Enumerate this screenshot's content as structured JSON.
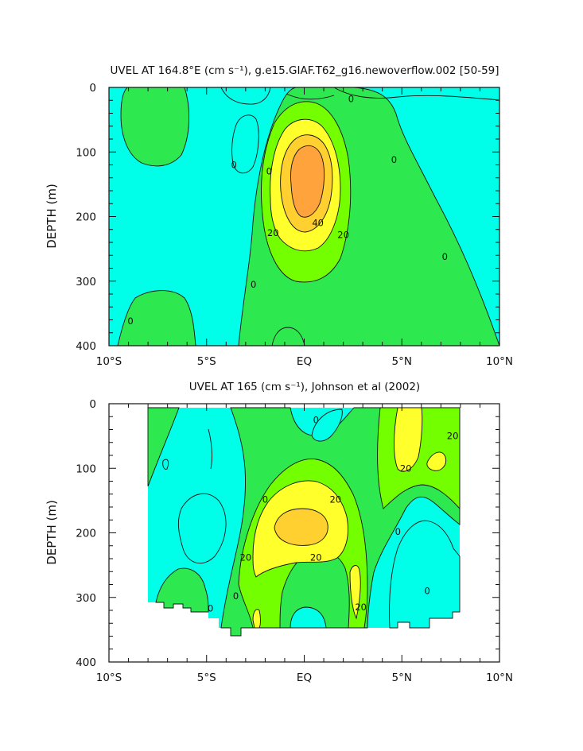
{
  "colors": {
    "neg": "#00ffe9",
    "c0_10": "#2ee84f",
    "c10_20": "#73ff00",
    "c20_30": "#ffff2c",
    "c30_40": "#ffd02f",
    "c40_50": "#ffa33c",
    "line": "#111111",
    "blank": "#ffffff"
  },
  "chart_data": [
    {
      "type": "contour",
      "title": "UVEL AT 164.8°E (cm s⁻¹), g.e15.GIAF.T62_g16.newoverflow.002 [50-59]",
      "xlabel": "",
      "ylabel": "DEPTH (m)",
      "x_tick_labels": [
        "10°S",
        "5°S",
        "EQ",
        "5°N",
        "10°N"
      ],
      "x_ticks": [
        -10,
        -5,
        0,
        5,
        10
      ],
      "y_tick_labels": [
        "0",
        "100",
        "200",
        "300",
        "400"
      ],
      "y_ticks": [
        0,
        100,
        200,
        300,
        400
      ],
      "xlim": [
        -10,
        10
      ],
      "ylim": [
        0,
        400
      ],
      "y_inverted": true,
      "contour_interval": 10,
      "contour_levels": [
        0,
        10,
        20,
        30,
        40
      ],
      "core": {
        "lat": 0.0,
        "depth": 180,
        "max_value": 45
      },
      "contour_labels": [
        {
          "text": "0",
          "lat": -3.6,
          "depth": 120
        },
        {
          "text": "0",
          "lat": 2.4,
          "depth": 18
        },
        {
          "text": "0",
          "lat": 4.6,
          "depth": 112
        },
        {
          "text": "0",
          "lat": 7.2,
          "depth": 262
        },
        {
          "text": "0",
          "lat": -2.6,
          "depth": 305
        },
        {
          "text": "0",
          "lat": -8.9,
          "depth": 362
        },
        {
          "text": "20",
          "lat": -1.6,
          "depth": 225
        },
        {
          "text": "40",
          "lat": 0.7,
          "depth": 210
        },
        {
          "text": "20",
          "lat": 2.0,
          "depth": 228
        },
        {
          "text": "0",
          "lat": -1.8,
          "depth": 130
        }
      ]
    },
    {
      "type": "contour",
      "title": "UVEL AT 165 (cm s⁻¹), Johnson et al (2002)",
      "xlabel": "",
      "ylabel": "DEPTH (m)",
      "x_tick_labels": [
        "10°S",
        "5°S",
        "EQ",
        "5°N",
        "10°N"
      ],
      "x_ticks": [
        -10,
        -5,
        0,
        5,
        10
      ],
      "y_tick_labels": [
        "0",
        "100",
        "200",
        "300",
        "400"
      ],
      "y_ticks": [
        0,
        100,
        200,
        300,
        400
      ],
      "xlim": [
        -10,
        10
      ],
      "ylim": [
        0,
        400
      ],
      "y_inverted": true,
      "data_extent": {
        "lat": [
          -8,
          8
        ],
        "depth": [
          8,
          345
        ]
      },
      "contour_interval": 10,
      "contour_levels": [
        0,
        10,
        20,
        30
      ],
      "core": {
        "lat": 0.0,
        "depth": 185,
        "max_value": 35
      },
      "contour_labels": [
        {
          "text": "0",
          "lat": 0.6,
          "depth": 25
        },
        {
          "text": "20",
          "lat": 7.6,
          "depth": 50
        },
        {
          "text": "20",
          "lat": 5.2,
          "depth": 100
        },
        {
          "text": "0",
          "lat": -2.0,
          "depth": 148
        },
        {
          "text": "20",
          "lat": 1.6,
          "depth": 148
        },
        {
          "text": "20",
          "lat": -3.0,
          "depth": 238
        },
        {
          "text": "20",
          "lat": 0.6,
          "depth": 238
        },
        {
          "text": "0",
          "lat": 4.8,
          "depth": 198
        },
        {
          "text": "0",
          "lat": 6.3,
          "depth": 290
        },
        {
          "text": "0",
          "lat": -3.5,
          "depth": 298
        },
        {
          "text": "20",
          "lat": 2.9,
          "depth": 315
        },
        {
          "text": "0",
          "lat": -4.8,
          "depth": 317
        }
      ]
    }
  ]
}
